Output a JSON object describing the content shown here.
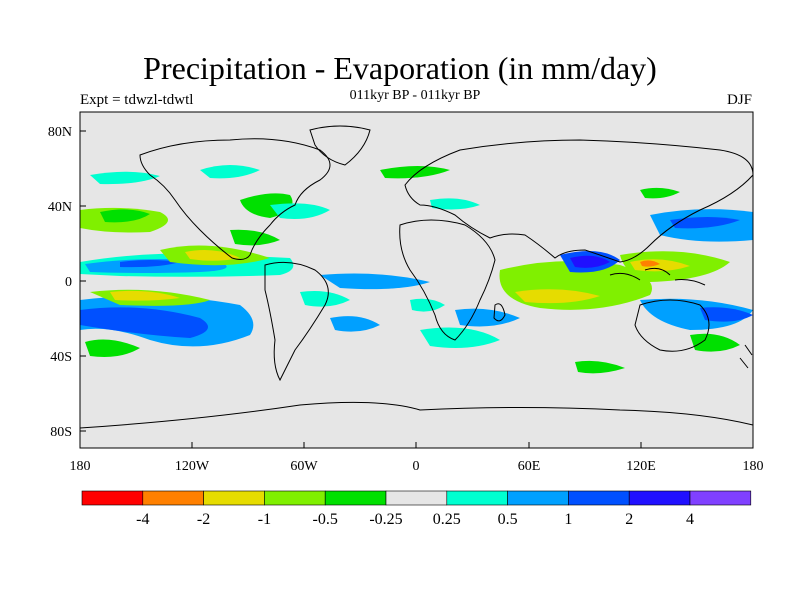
{
  "header": {
    "title": "Precipitation - Evaporation (in mm/day)",
    "left_label": "Expt = tdwzl-tdwtl",
    "center_label": "011kyr BP - 011kyr BP",
    "right_label": "DJF"
  },
  "map": {
    "background_color": "#e6e6e6",
    "y_ticks": [
      "80N",
      "40N",
      "0",
      "40S",
      "80S"
    ],
    "x_ticks": [
      "180",
      "120W",
      "60W",
      "0",
      "60E",
      "120E",
      "180"
    ]
  },
  "legend": {
    "colors": [
      "#ff0000",
      "#ff8000",
      "#e6dc00",
      "#80f000",
      "#00e000",
      "#e6e6e6",
      "#00ffd0",
      "#00a0ff",
      "#0050ff",
      "#2010ff",
      "#8040ff"
    ],
    "labels": [
      "-4",
      "-2",
      "-1",
      "-0.5",
      "-0.25",
      "0.25",
      "0.5",
      "1",
      "2",
      "4"
    ]
  }
}
